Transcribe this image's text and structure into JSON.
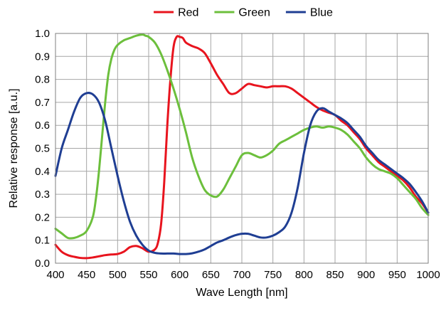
{
  "chart_data": {
    "type": "line",
    "title": "",
    "xlabel": "Wave Length [nm]",
    "ylabel": "Relative response [a.u.]",
    "xlim": [
      400,
      1000
    ],
    "ylim": [
      0,
      1.0
    ],
    "x_ticks": [
      "400",
      "450",
      "500",
      "550",
      "600",
      "650",
      "700",
      "750",
      "800",
      "850",
      "900",
      "950",
      "1000"
    ],
    "y_ticks": [
      "0.0",
      "0.1",
      "0.2",
      "0.3",
      "0.4",
      "0.5",
      "0.6",
      "0.7",
      "0.8",
      "0.9",
      "1.0"
    ],
    "grid": true,
    "legend_position": "top-center",
    "series": [
      {
        "name": "Red",
        "color": "#e8141e",
        "x": [
          400,
          410,
          420,
          430,
          440,
          450,
          460,
          470,
          480,
          490,
          500,
          510,
          520,
          530,
          540,
          550,
          560,
          565,
          570,
          575,
          580,
          585,
          590,
          595,
          600,
          605,
          610,
          620,
          630,
          640,
          650,
          660,
          670,
          680,
          690,
          700,
          710,
          720,
          730,
          740,
          750,
          760,
          770,
          780,
          790,
          800,
          810,
          820,
          830,
          840,
          850,
          860,
          870,
          880,
          890,
          900,
          910,
          920,
          930,
          940,
          950,
          960,
          970,
          980,
          990,
          1000
        ],
        "y": [
          0.08,
          0.05,
          0.035,
          0.028,
          0.023,
          0.022,
          0.025,
          0.03,
          0.035,
          0.038,
          0.04,
          0.05,
          0.07,
          0.075,
          0.065,
          0.05,
          0.06,
          0.09,
          0.17,
          0.35,
          0.6,
          0.8,
          0.94,
          0.985,
          0.985,
          0.98,
          0.96,
          0.945,
          0.935,
          0.915,
          0.87,
          0.82,
          0.78,
          0.74,
          0.74,
          0.76,
          0.78,
          0.775,
          0.77,
          0.765,
          0.77,
          0.77,
          0.77,
          0.76,
          0.74,
          0.72,
          0.7,
          0.68,
          0.665,
          0.655,
          0.645,
          0.62,
          0.6,
          0.57,
          0.54,
          0.5,
          0.47,
          0.44,
          0.42,
          0.4,
          0.38,
          0.36,
          0.33,
          0.29,
          0.26,
          0.22
        ]
      },
      {
        "name": "Green",
        "color": "#6cbf3c",
        "x": [
          400,
          410,
          420,
          430,
          440,
          450,
          460,
          465,
          470,
          475,
          480,
          485,
          490,
          495,
          500,
          510,
          520,
          530,
          540,
          545,
          550,
          560,
          570,
          580,
          590,
          600,
          610,
          620,
          630,
          640,
          650,
          660,
          670,
          680,
          690,
          700,
          710,
          720,
          730,
          740,
          750,
          760,
          770,
          780,
          790,
          800,
          810,
          820,
          830,
          840,
          850,
          860,
          870,
          880,
          890,
          900,
          910,
          920,
          930,
          940,
          950,
          960,
          970,
          980,
          990,
          1000
        ],
        "y": [
          0.15,
          0.13,
          0.11,
          0.11,
          0.12,
          0.14,
          0.2,
          0.28,
          0.4,
          0.55,
          0.7,
          0.82,
          0.89,
          0.93,
          0.95,
          0.97,
          0.98,
          0.99,
          0.995,
          0.99,
          0.985,
          0.96,
          0.91,
          0.84,
          0.76,
          0.67,
          0.57,
          0.46,
          0.38,
          0.32,
          0.295,
          0.29,
          0.32,
          0.37,
          0.42,
          0.47,
          0.48,
          0.47,
          0.46,
          0.47,
          0.49,
          0.52,
          0.535,
          0.55,
          0.565,
          0.58,
          0.59,
          0.595,
          0.59,
          0.595,
          0.59,
          0.58,
          0.56,
          0.53,
          0.5,
          0.46,
          0.43,
          0.41,
          0.4,
          0.39,
          0.37,
          0.34,
          0.31,
          0.28,
          0.24,
          0.21
        ]
      },
      {
        "name": "Blue",
        "color": "#1f3e93",
        "x": [
          400,
          410,
          420,
          430,
          440,
          450,
          460,
          470,
          480,
          490,
          500,
          510,
          520,
          530,
          540,
          550,
          560,
          570,
          580,
          590,
          600,
          610,
          620,
          630,
          640,
          650,
          660,
          670,
          680,
          690,
          700,
          710,
          720,
          730,
          740,
          750,
          760,
          770,
          780,
          790,
          800,
          810,
          820,
          830,
          840,
          850,
          860,
          870,
          880,
          890,
          900,
          910,
          920,
          930,
          940,
          950,
          960,
          970,
          980,
          990,
          1000
        ],
        "y": [
          0.38,
          0.5,
          0.58,
          0.66,
          0.72,
          0.74,
          0.735,
          0.7,
          0.62,
          0.5,
          0.38,
          0.27,
          0.18,
          0.12,
          0.08,
          0.055,
          0.045,
          0.042,
          0.042,
          0.042,
          0.04,
          0.04,
          0.043,
          0.05,
          0.06,
          0.075,
          0.09,
          0.1,
          0.112,
          0.122,
          0.128,
          0.128,
          0.12,
          0.112,
          0.112,
          0.12,
          0.135,
          0.16,
          0.22,
          0.33,
          0.48,
          0.6,
          0.66,
          0.675,
          0.66,
          0.645,
          0.63,
          0.61,
          0.58,
          0.55,
          0.51,
          0.48,
          0.45,
          0.43,
          0.41,
          0.39,
          0.37,
          0.345,
          0.31,
          0.27,
          0.22
        ]
      }
    ]
  }
}
